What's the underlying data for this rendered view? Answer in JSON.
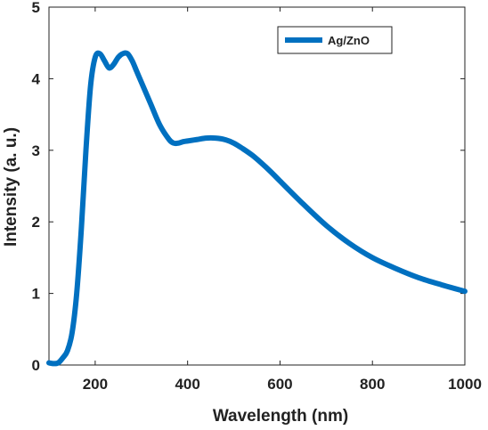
{
  "chart_data": {
    "type": "line",
    "title": "",
    "xlabel": "Wavelength (nm)",
    "ylabel": "Intensity (a. u.)",
    "xlim": [
      100,
      1000
    ],
    "ylim": [
      0,
      5
    ],
    "xticks": [
      200,
      400,
      600,
      800,
      1000
    ],
    "yticks": [
      0,
      1,
      2,
      3,
      4,
      5
    ],
    "grid": false,
    "legend_position": "top-right",
    "series": [
      {
        "name": "Ag/ZnO",
        "color": "#0070C0",
        "x": [
          100,
          110,
          120,
          130,
          140,
          150,
          160,
          170,
          180,
          190,
          200,
          210,
          220,
          230,
          240,
          250,
          260,
          270,
          280,
          290,
          300,
          320,
          340,
          360,
          370,
          380,
          390,
          400,
          420,
          440,
          460,
          480,
          500,
          520,
          540,
          560,
          580,
          600,
          650,
          700,
          750,
          800,
          850,
          900,
          950,
          1000
        ],
        "y": [
          0.03,
          0.02,
          0.03,
          0.1,
          0.2,
          0.45,
          1.0,
          1.9,
          3.0,
          3.9,
          4.3,
          4.35,
          4.25,
          4.15,
          4.2,
          4.3,
          4.35,
          4.35,
          4.25,
          4.1,
          3.95,
          3.65,
          3.35,
          3.15,
          3.1,
          3.1,
          3.12,
          3.13,
          3.15,
          3.17,
          3.17,
          3.15,
          3.1,
          3.02,
          2.93,
          2.82,
          2.7,
          2.57,
          2.25,
          1.95,
          1.7,
          1.5,
          1.35,
          1.22,
          1.12,
          1.03
        ]
      }
    ]
  }
}
